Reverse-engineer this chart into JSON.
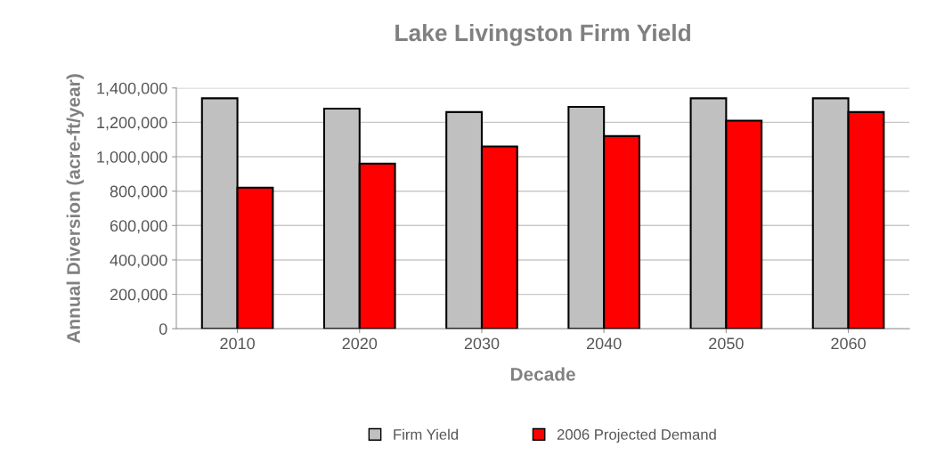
{
  "chart_data": {
    "type": "bar",
    "title": "Lake Livingston Firm Yield",
    "xlabel": "Decade",
    "ylabel": "Annual Diversion (acre-ft/year)",
    "categories": [
      "2010",
      "2020",
      "2030",
      "2040",
      "2050",
      "2060"
    ],
    "series": [
      {
        "name": "Firm Yield",
        "color": "#c0c0c0",
        "values": [
          1340000,
          1280000,
          1260000,
          1290000,
          1340000,
          1340000
        ]
      },
      {
        "name": "2006 Projected Demand",
        "color": "#ff0000",
        "values": [
          820000,
          960000,
          1060000,
          1120000,
          1210000,
          1260000
        ]
      }
    ],
    "ylim": [
      0,
      1400000
    ],
    "yticks": [
      {
        "value": 0,
        "label": "0"
      },
      {
        "value": 200000,
        "label": "200,000"
      },
      {
        "value": 400000,
        "label": "400,000"
      },
      {
        "value": 600000,
        "label": "600,000"
      },
      {
        "value": 800000,
        "label": "800,000"
      },
      {
        "value": 1000000,
        "label": "1,000,000"
      },
      {
        "value": 1200000,
        "label": "1,200,000"
      },
      {
        "value": 1400000,
        "label": "1,400,000"
      }
    ],
    "grid": "y",
    "legend": "bottom"
  }
}
